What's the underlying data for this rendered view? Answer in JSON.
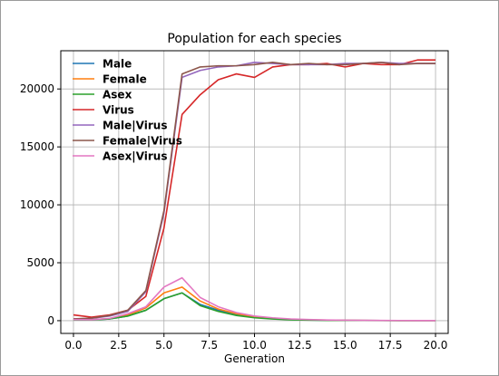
{
  "chart_data": {
    "type": "line",
    "title": "Population for each species",
    "xlabel": "Generation",
    "ylabel": "",
    "xlim": [
      -0.7,
      20.7
    ],
    "ylim": [
      -1100,
      23300
    ],
    "xticks": [
      0.0,
      2.5,
      5.0,
      7.5,
      10.0,
      12.5,
      15.0,
      17.5,
      20.0
    ],
    "xtick_labels": [
      "0.0",
      "2.5",
      "5.0",
      "7.5",
      "10.0",
      "12.5",
      "15.0",
      "17.5",
      "20.0"
    ],
    "yticks": [
      0,
      5000,
      10000,
      15000,
      20000
    ],
    "ytick_labels": [
      "0",
      "5000",
      "10000",
      "15000",
      "20000"
    ],
    "grid": true,
    "legend_position": "top-left",
    "x": [
      0,
      1,
      2,
      3,
      4,
      5,
      6,
      7,
      8,
      9,
      10,
      11,
      12,
      13,
      14,
      15,
      16,
      17,
      18,
      19,
      20
    ],
    "series": [
      {
        "name": "Male",
        "color": "#1f77b4",
        "values": [
          100,
          80,
          150,
          400,
          900,
          1900,
          2400,
          1400,
          900,
          550,
          300,
          180,
          100,
          60,
          40,
          30,
          20,
          15,
          10,
          10,
          10
        ]
      },
      {
        "name": "Female",
        "color": "#ff7f0e",
        "values": [
          120,
          90,
          180,
          500,
          1100,
          2400,
          2900,
          1700,
          1000,
          600,
          350,
          200,
          110,
          70,
          45,
          30,
          20,
          15,
          10,
          10,
          10
        ]
      },
      {
        "name": "Asex",
        "color": "#2ca02c",
        "values": [
          80,
          70,
          150,
          400,
          900,
          1900,
          2400,
          1300,
          800,
          450,
          250,
          150,
          80,
          50,
          30,
          20,
          15,
          10,
          10,
          5,
          5
        ]
      },
      {
        "name": "Virus",
        "color": "#d62728",
        "values": [
          500,
          300,
          500,
          900,
          2100,
          8000,
          17800,
          19500,
          20800,
          21300,
          21000,
          21900,
          22100,
          22100,
          22200,
          21900,
          22200,
          22100,
          22100,
          22500,
          22500
        ]
      },
      {
        "name": "Male|Virus",
        "color": "#9467bd",
        "values": [
          150,
          200,
          400,
          800,
          2500,
          9300,
          21000,
          21600,
          21900,
          22000,
          22300,
          22200,
          22100,
          22100,
          22100,
          22200,
          22200,
          22300,
          22200,
          22200,
          22200
        ]
      },
      {
        "name": "Female|Virus",
        "color": "#8c564b",
        "values": [
          160,
          220,
          450,
          900,
          2600,
          9500,
          21300,
          21900,
          22000,
          22000,
          22100,
          22300,
          22100,
          22200,
          22100,
          22100,
          22200,
          22300,
          22100,
          22200,
          22200
        ]
      },
      {
        "name": "Asex|Virus",
        "color": "#e377c2",
        "values": [
          100,
          80,
          200,
          600,
          1200,
          2900,
          3700,
          2000,
          1200,
          700,
          400,
          250,
          150,
          100,
          60,
          40,
          30,
          20,
          15,
          10,
          10
        ]
      }
    ]
  }
}
